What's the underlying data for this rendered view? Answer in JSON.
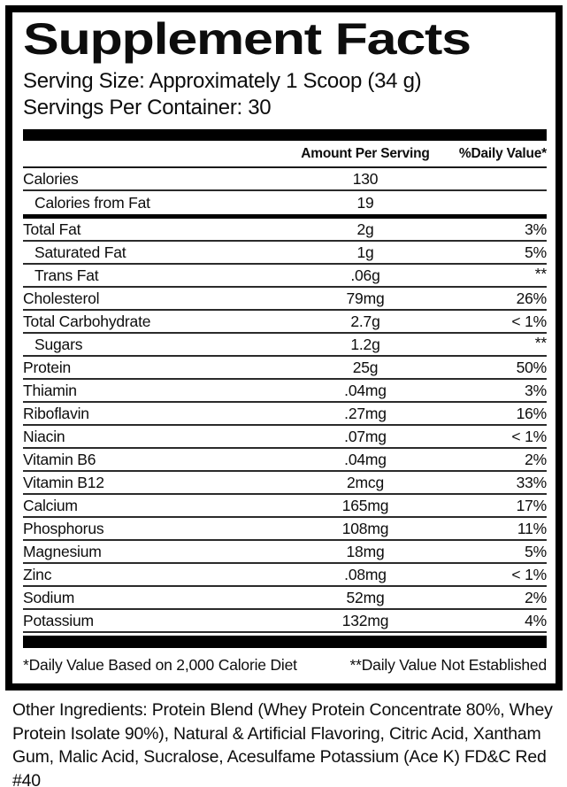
{
  "label": {
    "title": "Supplement Facts",
    "serving_size": "Serving Size: Approximately 1 Scoop (34 g)",
    "servings_per_container": "Servings Per Container: 30",
    "columns": {
      "amount": "Amount Per Serving",
      "daily_value": "%Daily Value*"
    },
    "calorie_rows": [
      {
        "name": "Calories",
        "amount": "130",
        "dv": "",
        "indent": false
      },
      {
        "name": "Calories from Fat",
        "amount": "19",
        "dv": "",
        "indent": true
      }
    ],
    "nutrient_rows": [
      {
        "name": "Total Fat",
        "amount": "2g",
        "dv": "3%",
        "indent": false
      },
      {
        "name": "Saturated Fat",
        "amount": "1g",
        "dv": "5%",
        "indent": true
      },
      {
        "name": "Trans Fat",
        "amount": ".06g",
        "dv": "**",
        "indent": true
      },
      {
        "name": "Cholesterol",
        "amount": "79mg",
        "dv": "26%",
        "indent": false
      },
      {
        "name": "Total Carbohydrate",
        "amount": "2.7g",
        "dv": "< 1%",
        "indent": false
      },
      {
        "name": "Sugars",
        "amount": "1.2g",
        "dv": "**",
        "indent": true
      },
      {
        "name": "Protein",
        "amount": "25g",
        "dv": "50%",
        "indent": false
      },
      {
        "name": "Thiamin",
        "amount": ".04mg",
        "dv": "3%",
        "indent": false
      },
      {
        "name": "Riboflavin",
        "amount": ".27mg",
        "dv": "16%",
        "indent": false
      },
      {
        "name": "Niacin",
        "amount": ".07mg",
        "dv": "< 1%",
        "indent": false
      },
      {
        "name": "Vitamin B6",
        "amount": ".04mg",
        "dv": "2%",
        "indent": false
      },
      {
        "name": "Vitamin B12",
        "amount": "2mcg",
        "dv": "33%",
        "indent": false
      },
      {
        "name": "Calcium",
        "amount": "165mg",
        "dv": "17%",
        "indent": false
      },
      {
        "name": "Phosphorus",
        "amount": "108mg",
        "dv": "11%",
        "indent": false
      },
      {
        "name": "Magnesium",
        "amount": "18mg",
        "dv": "5%",
        "indent": false
      },
      {
        "name": "Zinc",
        "amount": ".08mg",
        "dv": "< 1%",
        "indent": false
      },
      {
        "name": "Sodium",
        "amount": "52mg",
        "dv": "2%",
        "indent": false
      },
      {
        "name": "Potassium",
        "amount": "132mg",
        "dv": "4%",
        "indent": false
      }
    ],
    "footnote_left": "*Daily Value Based on 2,000 Calorie Diet",
    "footnote_right": "**Daily Value Not Established",
    "colors": {
      "ink": "#0d0d0d",
      "rule": "#2b2b2b",
      "bar": "#000000",
      "background": "#ffffff"
    }
  },
  "other_ingredients": "Other Ingredients: Protein Blend (Whey Protein Concentrate 80%, Whey Protein Isolate 90%), Natural & Artificial Flavoring, Citric Acid, Xantham Gum, Malic Acid, Sucralose, Acesulfame Potassium (Ace K) FD&C Red #40"
}
